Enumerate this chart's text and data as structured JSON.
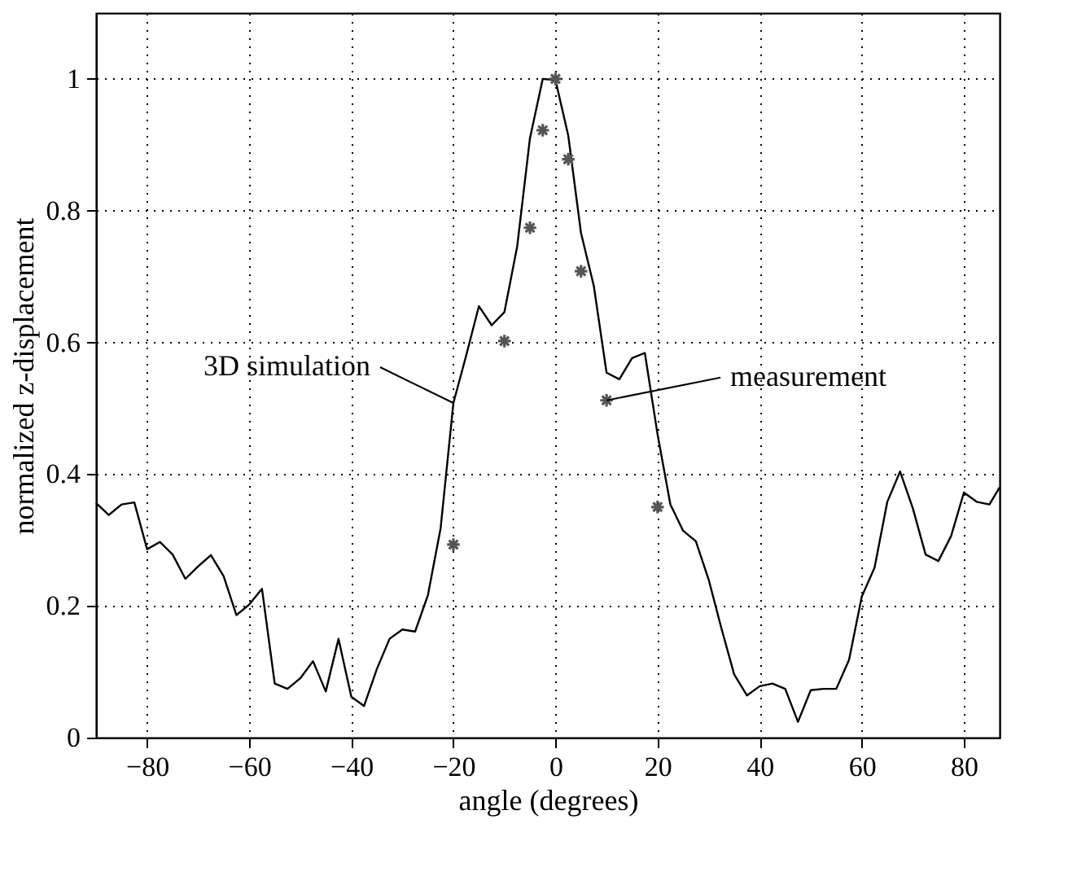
{
  "chart_data": {
    "type": "line",
    "xlabel": "angle (degrees)",
    "ylabel": "normalized z-displacement",
    "xlim": [
      -90,
      87
    ],
    "ylim": [
      0,
      1.1
    ],
    "xticks": [
      -80,
      -60,
      -40,
      -20,
      0,
      20,
      40,
      60,
      80
    ],
    "yticks": [
      0,
      0.2,
      0.4,
      0.6,
      0.8,
      1
    ],
    "grid": true,
    "series": [
      {
        "color": "#000000",
        "marker": "none",
        "x": [
          -90,
          -87.5,
          -85,
          -82.5,
          -80,
          -77.5,
          -75,
          -72.5,
          -70,
          -67.5,
          -65,
          -62.5,
          -60,
          -57.5,
          -55,
          -52.5,
          -50,
          -47.5,
          -45,
          -42.5,
          -40,
          -37.5,
          -35,
          -32.5,
          -30,
          -27.5,
          -25,
          -22.5,
          -20,
          -17.5,
          -15,
          -12.5,
          -10,
          -7.5,
          -5,
          -2.5,
          0,
          2.5,
          5,
          7.5,
          10,
          12.5,
          15,
          17.5,
          20,
          22.5,
          25,
          27.5,
          30,
          32.5,
          35,
          37.5,
          40,
          42.5,
          45,
          47.5,
          50,
          52.5,
          55,
          57.5,
          60,
          62.5,
          65,
          67.5,
          70,
          72.5,
          75,
          77.5,
          80,
          82.5,
          85,
          87
        ],
        "values": [
          0.356,
          0.338,
          0.354,
          0.357,
          0.286,
          0.297,
          0.278,
          0.241,
          0.26,
          0.277,
          0.245,
          0.186,
          0.202,
          0.226,
          0.082,
          0.074,
          0.09,
          0.116,
          0.07,
          0.15,
          0.062,
          0.048,
          0.104,
          0.15,
          0.164,
          0.161,
          0.216,
          0.318,
          0.508,
          0.58,
          0.655,
          0.626,
          0.646,
          0.746,
          0.91,
          1.0,
          0.998,
          0.914,
          0.766,
          0.686,
          0.554,
          0.544,
          0.576,
          0.584,
          0.46,
          0.354,
          0.314,
          0.298,
          0.24,
          0.166,
          0.096,
          0.064,
          0.078,
          0.082,
          0.074,
          0.024,
          0.072,
          0.074,
          0.074,
          0.118,
          0.214,
          0.258,
          0.358,
          0.404,
          0.348,
          0.278,
          0.268,
          0.306,
          0.372,
          0.358,
          0.354,
          0.38
        ]
      },
      {
        "type": "scatter",
        "color": "#555555",
        "marker": "cross",
        "x": [
          -20,
          -10,
          -5,
          -2.5,
          0,
          2.5,
          5,
          10,
          20
        ],
        "values": [
          0.293,
          0.602,
          0.774,
          0.922,
          1.0,
          0.878,
          0.708,
          0.512,
          0.35
        ]
      }
    ],
    "annotations": [
      {
        "text": "3D simulation",
        "x": -20,
        "y": 0.508
      },
      {
        "text": "measurement",
        "x": 10,
        "y": 0.512
      }
    ]
  }
}
